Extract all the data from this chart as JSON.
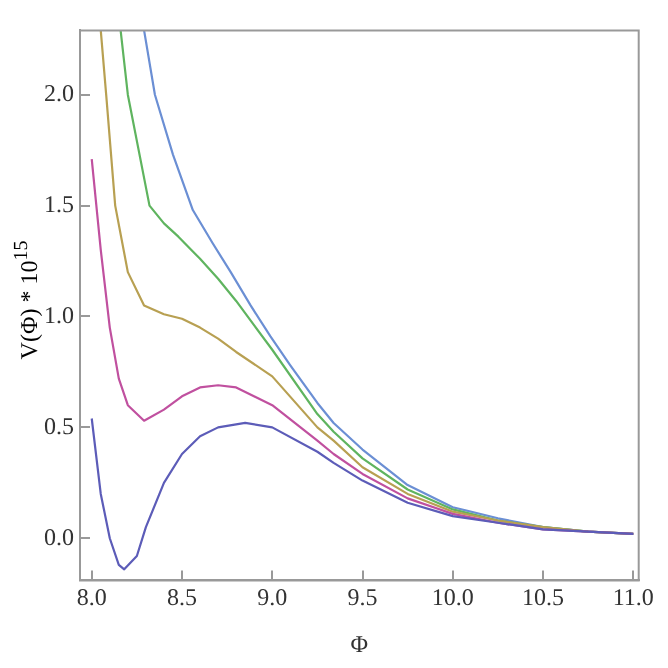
{
  "chart_data": {
    "type": "line",
    "xlabel": "Φ",
    "ylabel": "V(Φ) * 10$^{15}$",
    "xlim": [
      7.935,
      11.03
    ],
    "ylim": [
      -0.19,
      2.29
    ],
    "xticks": [
      {
        "value": 8,
        "label": "8.0"
      },
      8.5,
      {
        "value": 9,
        "label": "9.0"
      },
      9.5,
      {
        "value": 10,
        "label": "10.0"
      },
      10.5,
      {
        "value": 11,
        "label": "11.0"
      }
    ],
    "yticks": [
      {
        "value": 0,
        "label": "0.0"
      },
      0.5,
      {
        "value": 1,
        "label": "1.0"
      },
      1.5,
      {
        "value": 2,
        "label": "2.0"
      }
    ],
    "grid": false,
    "legend": false,
    "marker": "none",
    "line_style": "solid",
    "series": [
      {
        "color": "#5c5cb8",
        "x": [
          8.0,
          8.05,
          8.1,
          8.15,
          8.18,
          8.25,
          8.3,
          8.4,
          8.5,
          8.6,
          8.7,
          8.85,
          9.0,
          9.25,
          9.34,
          9.5,
          9.75,
          10.0,
          10.25,
          10.5,
          10.75,
          11.0
        ],
        "values": [
          0.54,
          0.2,
          0.0,
          -0.12,
          -0.14,
          -0.08,
          0.05,
          0.25,
          0.38,
          0.46,
          0.5,
          0.52,
          0.5,
          0.39,
          0.34,
          0.26,
          0.16,
          0.1,
          0.07,
          0.04,
          0.03,
          0.02
        ]
      },
      {
        "color": "#c0509f",
        "x": [
          8.0,
          8.05,
          8.1,
          8.15,
          8.2,
          8.29,
          8.4,
          8.5,
          8.6,
          8.7,
          8.8,
          9.0,
          9.25,
          9.34,
          9.5,
          9.75,
          10.0,
          10.25,
          10.5,
          10.75,
          11.0
        ],
        "values": [
          1.71,
          1.3,
          0.95,
          0.72,
          0.6,
          0.53,
          0.58,
          0.64,
          0.68,
          0.69,
          0.68,
          0.6,
          0.44,
          0.38,
          0.29,
          0.18,
          0.11,
          0.07,
          0.04,
          0.03,
          0.02
        ]
      },
      {
        "color": "#b8a052",
        "x": [
          8.05,
          8.08,
          8.13,
          8.2,
          8.29,
          8.4,
          8.5,
          8.6,
          8.7,
          8.8,
          9.0,
          9.25,
          9.34,
          9.5,
          9.75,
          10.0,
          10.25,
          10.5,
          10.75,
          11.0
        ],
        "values": [
          2.29,
          2.0,
          1.5,
          1.2,
          1.05,
          1.01,
          0.99,
          0.95,
          0.9,
          0.84,
          0.73,
          0.5,
          0.44,
          0.32,
          0.2,
          0.12,
          0.08,
          0.05,
          0.03,
          0.02
        ]
      },
      {
        "color": "#5fb45f",
        "x": [
          8.16,
          8.2,
          8.32,
          8.4,
          8.48,
          8.6,
          8.7,
          8.8,
          8.9,
          9.0,
          9.25,
          9.34,
          9.5,
          9.75,
          10.0,
          10.25,
          10.5,
          10.75,
          11.0
        ],
        "values": [
          2.29,
          2.0,
          1.5,
          1.42,
          1.36,
          1.26,
          1.17,
          1.07,
          0.96,
          0.85,
          0.56,
          0.48,
          0.36,
          0.22,
          0.13,
          0.08,
          0.05,
          0.03,
          0.02
        ]
      },
      {
        "color": "#6b8fd4",
        "x": [
          8.29,
          8.35,
          8.45,
          8.56,
          8.67,
          8.77,
          8.88,
          8.99,
          9.1,
          9.25,
          9.34,
          9.5,
          9.75,
          10.0,
          10.25,
          10.5,
          10.75,
          11.0
        ],
        "values": [
          2.29,
          2.0,
          1.73,
          1.48,
          1.33,
          1.2,
          1.05,
          0.91,
          0.78,
          0.61,
          0.52,
          0.4,
          0.24,
          0.14,
          0.09,
          0.05,
          0.03,
          0.02
        ]
      }
    ]
  }
}
